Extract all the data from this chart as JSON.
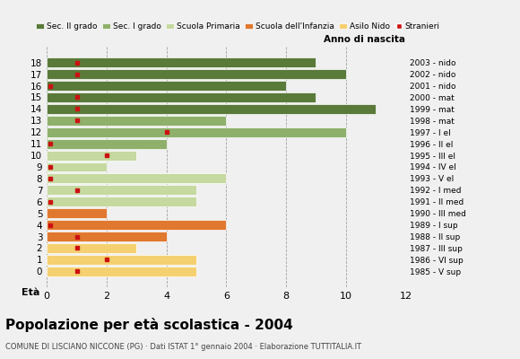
{
  "ages": [
    18,
    17,
    16,
    15,
    14,
    13,
    12,
    11,
    10,
    9,
    8,
    7,
    6,
    5,
    4,
    3,
    2,
    1,
    0
  ],
  "anno_nascita": [
    "1985 - V sup",
    "1986 - VI sup",
    "1987 - III sup",
    "1988 - II sup",
    "1989 - I sup",
    "1990 - III med",
    "1991 - II med",
    "1992 - I med",
    "1993 - V el",
    "1994 - IV el",
    "1995 - III el",
    "1996 - II el",
    "1997 - I el",
    "1998 - mat",
    "1999 - mat",
    "2000 - mat",
    "2001 - nido",
    "2002 - nido",
    "2003 - nido"
  ],
  "bar_values": [
    9,
    10,
    8,
    9,
    11,
    6,
    10,
    4,
    3,
    2,
    6,
    5,
    5,
    2,
    6,
    4,
    3,
    5,
    5
  ],
  "stranieri_x": [
    1,
    1,
    0.1,
    1,
    1,
    1,
    4,
    0.1,
    2,
    0.1,
    0.1,
    1,
    0.1,
    null,
    0.1,
    1,
    1,
    2,
    1
  ],
  "bar_colors": [
    "#5a7a3a",
    "#5a7a3a",
    "#5a7a3a",
    "#5a7a3a",
    "#5a7a3a",
    "#8fb06a",
    "#8fb06a",
    "#8fb06a",
    "#c5d9a0",
    "#c5d9a0",
    "#c5d9a0",
    "#c5d9a0",
    "#c5d9a0",
    "#e07830",
    "#e07830",
    "#e07830",
    "#f5d070",
    "#f5d070",
    "#f5d070"
  ],
  "legend_labels": [
    "Sec. II grado",
    "Sec. I grado",
    "Scuola Primaria",
    "Scuola dell'Infanzia",
    "Asilo Nido",
    "Stranieri"
  ],
  "legend_colors": [
    "#5a7a3a",
    "#8fb06a",
    "#c5d9a0",
    "#e07830",
    "#f5d070",
    "#cc1111"
  ],
  "title": "Popolazione per età scolastica - 2004",
  "subtitle": "COMUNE DI LISCIANO NICCONE (PG) · Dati ISTAT 1° gennaio 2004 · Elaborazione TUTTITALIA.IT",
  "eta_label": "Età",
  "anno_label": "Anno di nascita",
  "xlim": [
    0,
    12
  ],
  "xticks": [
    0,
    2,
    4,
    6,
    8,
    10,
    12
  ],
  "stranieri_color": "#cc1111",
  "bg_color": "#f0f0f0",
  "bar_edge_color": "white"
}
